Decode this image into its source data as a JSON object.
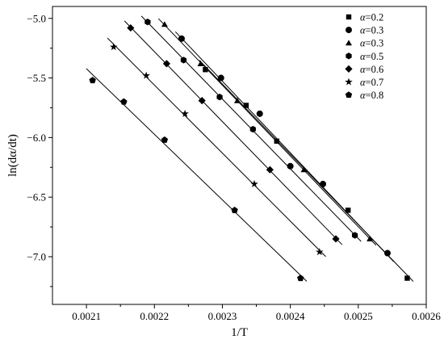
{
  "chart_data": {
    "type": "scatter",
    "xlabel": "1/T",
    "ylabel": "ln(dα/dt)",
    "xlim": [
      0.00205,
      0.0026
    ],
    "ylim": [
      -7.4,
      -4.9
    ],
    "xticks": [
      "0.0021",
      "0.0022",
      "0.0023",
      "0.0024",
      "0.0025",
      "0.0026"
    ],
    "yticks": [
      "-5.0",
      "-5.5",
      "-6.0",
      "-6.5",
      "-7.0"
    ],
    "grid": false,
    "legend_position": "top-right",
    "series": [
      {
        "name": "α=0.2",
        "marker": "square",
        "x": [
          0.002275,
          0.002335,
          0.00238,
          0.002485,
          0.002572
        ],
        "y": [
          -5.43,
          -5.73,
          -6.03,
          -6.61,
          -7.18
        ]
      },
      {
        "name": "α=0.3",
        "marker": "circle",
        "x": [
          0.00224,
          0.002298,
          0.002355,
          0.0024,
          0.002448,
          0.002543
        ],
        "y": [
          -5.17,
          -5.5,
          -5.8,
          -6.24,
          -6.39,
          -6.97
        ]
      },
      {
        "name": "α=0.3",
        "marker": "triangle",
        "x": [
          0.002215,
          0.002268,
          0.002322,
          0.00242,
          0.002517
        ],
        "y": [
          -5.05,
          -5.38,
          -5.69,
          -6.27,
          -6.85
        ]
      },
      {
        "name": "α=0.5",
        "marker": "hexagon",
        "x": [
          0.00219,
          0.002243,
          0.002296,
          0.002345,
          0.002495
        ],
        "y": [
          -5.03,
          -5.35,
          -5.66,
          -5.93,
          -6.82
        ]
      },
      {
        "name": "α=0.6",
        "marker": "diamond",
        "x": [
          0.002165,
          0.002218,
          0.00227,
          0.00237,
          0.002467
        ],
        "y": [
          -5.08,
          -5.38,
          -5.69,
          -6.27,
          -6.85
        ]
      },
      {
        "name": "α=0.7",
        "marker": "star",
        "x": [
          0.00214,
          0.002188,
          0.002245,
          0.002347,
          0.002443
        ],
        "y": [
          -5.24,
          -5.48,
          -5.8,
          -6.39,
          -6.96
        ]
      },
      {
        "name": "α=0.8",
        "marker": "pentagon",
        "x": [
          0.002109,
          0.002155,
          0.002215,
          0.002318,
          0.002415
        ],
        "y": [
          -5.52,
          -5.7,
          -6.02,
          -6.61,
          -7.18
        ]
      }
    ]
  }
}
